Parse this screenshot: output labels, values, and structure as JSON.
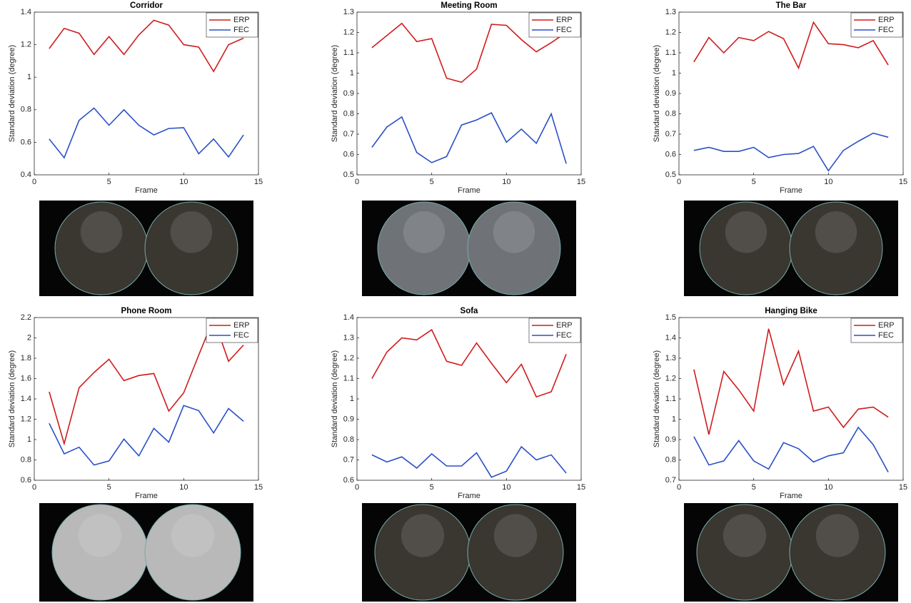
{
  "chart_data": [
    {
      "type": "line",
      "title": "Corridor",
      "xlabel": "Frame",
      "ylabel": "Standard deviation (degree)",
      "x": [
        1,
        2,
        3,
        4,
        5,
        6,
        7,
        8,
        9,
        10,
        11,
        12,
        13,
        14
      ],
      "xlim": [
        0,
        15
      ],
      "xticks": [
        0,
        5,
        10,
        15
      ],
      "ylim": [
        0.4,
        1.4
      ],
      "yticks": [
        0.4,
        0.6,
        0.8,
        1,
        1.2,
        1.4
      ],
      "legend": "upper right",
      "series": [
        {
          "name": "ERP",
          "color": "#d01c1c",
          "values": [
            1.176,
            1.3,
            1.27,
            1.14,
            1.25,
            1.14,
            1.26,
            1.35,
            1.32,
            1.2,
            1.185,
            1.035,
            1.2,
            1.24
          ]
        },
        {
          "name": "FEC",
          "color": "#2a4fc8",
          "values": [
            0.62,
            0.505,
            0.735,
            0.81,
            0.705,
            0.8,
            0.705,
            0.645,
            0.685,
            0.69,
            0.53,
            0.62,
            0.51,
            0.645
          ]
        }
      ]
    },
    {
      "type": "line",
      "title": "Meeting Room",
      "xlabel": "Frame",
      "ylabel": "Standard deviation (degree)",
      "x": [
        1,
        2,
        3,
        4,
        5,
        6,
        7,
        8,
        9,
        10,
        11,
        12,
        13,
        14
      ],
      "xlim": [
        0,
        15
      ],
      "xticks": [
        0,
        5,
        10,
        15
      ],
      "ylim": [
        0.5,
        1.3
      ],
      "yticks": [
        0.5,
        0.6,
        0.7,
        0.8,
        0.9,
        1,
        1.1,
        1.2,
        1.3
      ],
      "legend": "upper right",
      "series": [
        {
          "name": "ERP",
          "color": "#d01c1c",
          "values": [
            1.125,
            1.185,
            1.245,
            1.155,
            1.17,
            0.975,
            0.955,
            1.02,
            1.24,
            1.235,
            1.165,
            1.105,
            1.15,
            1.2
          ]
        },
        {
          "name": "FEC",
          "color": "#2a4fc8",
          "values": [
            0.635,
            0.735,
            0.785,
            0.61,
            0.56,
            0.59,
            0.745,
            0.77,
            0.805,
            0.66,
            0.725,
            0.655,
            0.8,
            0.555
          ]
        }
      ]
    },
    {
      "type": "line",
      "title": "The Bar",
      "xlabel": "Frame",
      "ylabel": "Standard deviation (degree)",
      "x": [
        1,
        2,
        3,
        4,
        5,
        6,
        7,
        8,
        9,
        10,
        11,
        12,
        13,
        14
      ],
      "xlim": [
        0,
        15
      ],
      "xticks": [
        0,
        5,
        10,
        15
      ],
      "ylim": [
        0.5,
        1.3
      ],
      "yticks": [
        0.5,
        0.6,
        0.7,
        0.8,
        0.9,
        1,
        1.1,
        1.2,
        1.3
      ],
      "legend": "upper right",
      "series": [
        {
          "name": "ERP",
          "color": "#d01c1c",
          "values": [
            1.055,
            1.175,
            1.1,
            1.175,
            1.16,
            1.205,
            1.17,
            1.025,
            1.25,
            1.145,
            1.14,
            1.125,
            1.16,
            1.04
          ]
        },
        {
          "name": "FEC",
          "color": "#2a4fc8",
          "values": [
            0.62,
            0.635,
            0.615,
            0.615,
            0.635,
            0.585,
            0.6,
            0.605,
            0.64,
            0.52,
            0.62,
            0.665,
            0.705,
            0.685
          ]
        }
      ]
    },
    {
      "type": "line",
      "title": "Phone Room",
      "xlabel": "Frame",
      "ylabel": "Standard deviation (degree)",
      "x": [
        1,
        2,
        3,
        4,
        5,
        6,
        7,
        8,
        9,
        10,
        11,
        12,
        13,
        14
      ],
      "xlim": [
        0,
        15
      ],
      "xticks": [
        0,
        5,
        10,
        15
      ],
      "ylim": [
        0.6,
        2.2
      ],
      "yticks": [
        0.6,
        0.8,
        1,
        1.2,
        1.4,
        1.6,
        1.8,
        2,
        2.2
      ],
      "legend": "upper right",
      "series": [
        {
          "name": "ERP",
          "color": "#d01c1c",
          "values": [
            1.47,
            0.96,
            1.51,
            1.66,
            1.79,
            1.58,
            1.63,
            1.65,
            1.28,
            1.46,
            1.83,
            2.19,
            1.77,
            1.93
          ]
        },
        {
          "name": "FEC",
          "color": "#2a4fc8",
          "values": [
            1.16,
            0.86,
            0.925,
            0.75,
            0.79,
            1.005,
            0.84,
            1.11,
            0.975,
            1.335,
            1.285,
            1.065,
            1.305,
            1.18
          ]
        }
      ]
    },
    {
      "type": "line",
      "title": "Sofa",
      "xlabel": "Frame",
      "ylabel": "Standard deviation (degree)",
      "x": [
        1,
        2,
        3,
        4,
        5,
        6,
        7,
        8,
        9,
        10,
        11,
        12,
        13,
        14
      ],
      "xlim": [
        0,
        15
      ],
      "xticks": [
        0,
        5,
        10,
        15
      ],
      "ylim": [
        0.6,
        1.4
      ],
      "yticks": [
        0.6,
        0.7,
        0.8,
        0.9,
        1,
        1.1,
        1.2,
        1.3,
        1.4
      ],
      "legend": "upper right",
      "series": [
        {
          "name": "ERP",
          "color": "#d01c1c",
          "values": [
            1.1,
            1.23,
            1.3,
            1.29,
            1.34,
            1.185,
            1.165,
            1.275,
            1.175,
            1.08,
            1.17,
            1.01,
            1.035,
            1.22
          ]
        },
        {
          "name": "FEC",
          "color": "#2a4fc8",
          "values": [
            0.725,
            0.69,
            0.715,
            0.66,
            0.73,
            0.67,
            0.67,
            0.735,
            0.615,
            0.645,
            0.765,
            0.7,
            0.725,
            0.635
          ]
        }
      ]
    },
    {
      "type": "line",
      "title": "Hanging Bike",
      "xlabel": "Frame",
      "ylabel": "Standard deviation (degree)",
      "x": [
        1,
        2,
        3,
        4,
        5,
        6,
        7,
        8,
        9,
        10,
        11,
        12,
        13,
        14
      ],
      "xlim": [
        0,
        15
      ],
      "xticks": [
        0,
        5,
        10,
        15
      ],
      "ylim": [
        0.7,
        1.5
      ],
      "yticks": [
        0.7,
        0.8,
        0.9,
        1,
        1.1,
        1.2,
        1.3,
        1.4,
        1.5
      ],
      "legend": "upper right",
      "series": [
        {
          "name": "ERP",
          "color": "#d01c1c",
          "values": [
            1.245,
            0.925,
            1.235,
            1.145,
            1.04,
            1.445,
            1.17,
            1.335,
            1.04,
            1.06,
            0.96,
            1.05,
            1.06,
            1.01
          ]
        },
        {
          "name": "FEC",
          "color": "#2a4fc8",
          "values": [
            0.915,
            0.775,
            0.795,
            0.895,
            0.795,
            0.755,
            0.885,
            0.855,
            0.79,
            0.82,
            0.835,
            0.96,
            0.875,
            0.74
          ]
        }
      ]
    }
  ]
}
